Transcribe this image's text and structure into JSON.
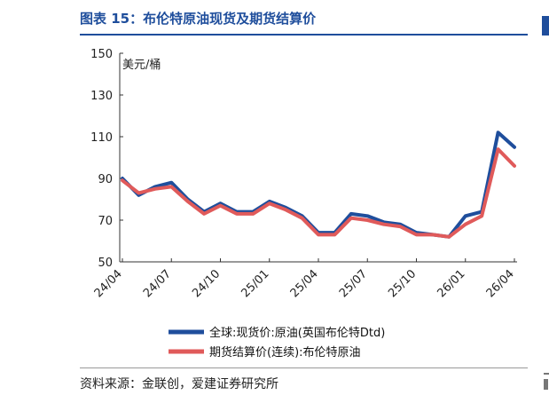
{
  "header": {
    "title": "图表 15：布伦特原油现货及期货结算价"
  },
  "footer": {
    "source": "资料来源：金联创，爱建证券研究所"
  },
  "chart_data": {
    "type": "line",
    "title": "图表 15：布伦特原油现货及期货结算价",
    "ylabel": "美元/桶",
    "xlabel": "",
    "ylim": [
      50,
      150
    ],
    "yticks": [
      "150",
      "130",
      "110",
      "90",
      "70",
      "50"
    ],
    "xticks": [
      "24/04",
      "24/07",
      "24/10",
      "25/01",
      "25/04",
      "25/07",
      "25/10",
      "26/01",
      "26/04"
    ],
    "legend_position": "bottom",
    "grid": false,
    "x": [
      "24/04",
      "24/05",
      "24/06",
      "24/07",
      "24/08",
      "24/09",
      "24/10",
      "24/11",
      "24/12",
      "25/01",
      "25/02",
      "25/03",
      "25/04",
      "25/05",
      "25/06",
      "25/07",
      "25/08",
      "25/09",
      "25/10",
      "25/11",
      "25/12",
      "26/01",
      "26/02",
      "26/03",
      "26/04"
    ],
    "series": [
      {
        "name": "全球:现货价:原油(英国布伦特Dtd)",
        "color": "#1f4e9c",
        "values": [
          90,
          82,
          86,
          88,
          80,
          74,
          78,
          74,
          74,
          79,
          76,
          72,
          64,
          64,
          73,
          72,
          69,
          68,
          64,
          63,
          62,
          72,
          74,
          112,
          105
        ]
      },
      {
        "name": "期货结算价(连续):布伦特原油",
        "color": "#e05a5a",
        "values": [
          89,
          83,
          85,
          86,
          79,
          73,
          77,
          73,
          73,
          78,
          75,
          71,
          63,
          63,
          71,
          70,
          68,
          67,
          63,
          63,
          62,
          68,
          72,
          104,
          96
        ]
      }
    ]
  }
}
